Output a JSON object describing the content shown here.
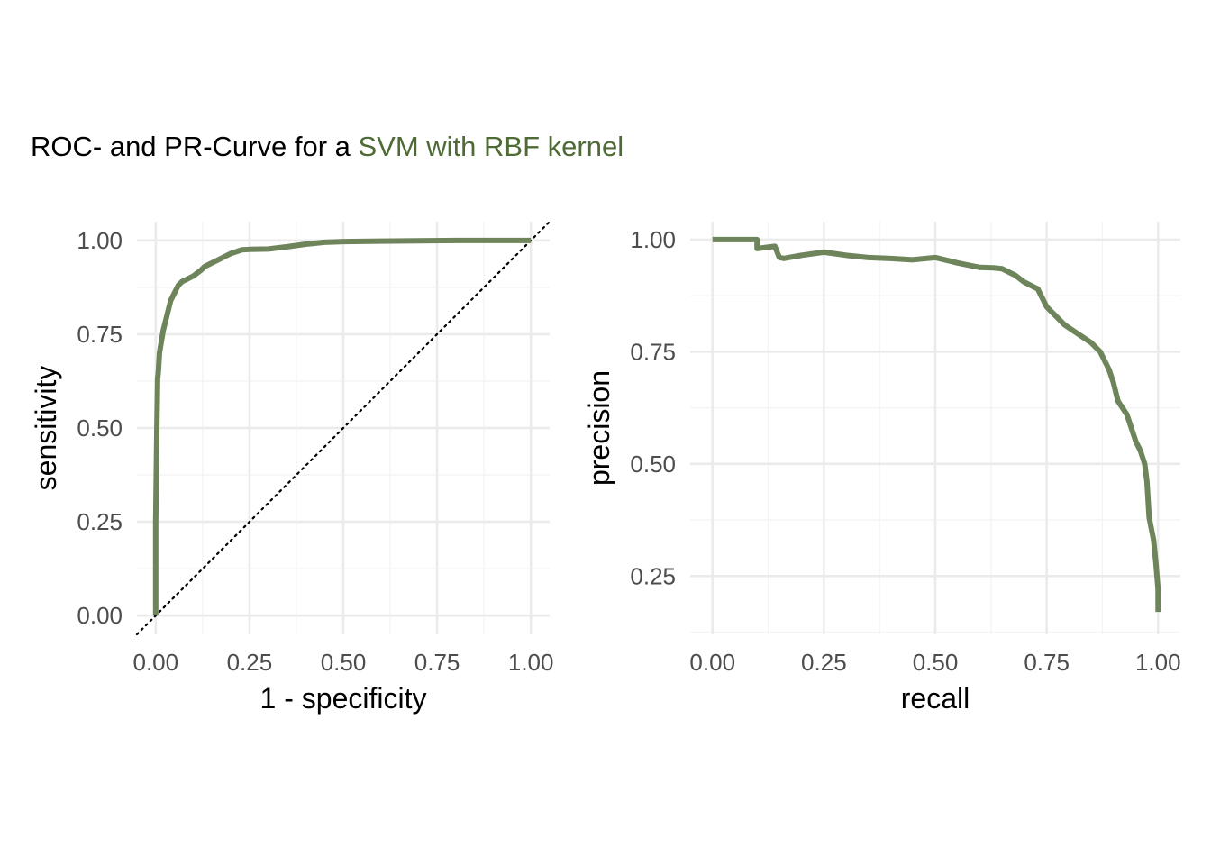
{
  "title": {
    "prefix": "ROC- and PR-Curve for a ",
    "highlight": "SVM with RBF kernel",
    "highlight_color": "#4f6b35"
  },
  "curve_color": "#6e845a",
  "chart_data": [
    {
      "type": "line",
      "xlabel": "1 - specificity",
      "ylabel": "sensitivity",
      "xlim": [
        -0.05,
        1.05
      ],
      "ylim": [
        -0.05,
        1.05
      ],
      "xticks": [
        0,
        0.25,
        0.5,
        0.75,
        1
      ],
      "yticks": [
        0,
        0.25,
        0.5,
        0.75,
        1
      ],
      "xtick_labels": [
        "0.00",
        "0.25",
        "0.50",
        "0.75",
        "1.00"
      ],
      "ytick_labels": [
        "0.00",
        "0.25",
        "0.50",
        "0.75",
        "1.00"
      ],
      "reference_line": {
        "from": [
          0,
          0
        ],
        "to": [
          1,
          1
        ],
        "style": "dotted",
        "color": "#000000"
      },
      "grid": true,
      "series": [
        {
          "x": [
            0,
            0,
            0.003,
            0.005,
            0.007,
            0.01,
            0.015,
            0.02,
            0.025,
            0.03,
            0.035,
            0.04,
            0.05,
            0.06,
            0.07,
            0.08,
            0.1,
            0.12,
            0.13,
            0.15,
            0.17,
            0.2,
            0.23,
            0.25,
            0.3,
            0.35,
            0.4,
            0.45,
            0.5,
            0.6,
            0.7,
            0.8,
            0.9,
            1.0
          ],
          "y": [
            0,
            0.25,
            0.5,
            0.63,
            0.65,
            0.7,
            0.73,
            0.76,
            0.78,
            0.8,
            0.82,
            0.84,
            0.86,
            0.88,
            0.89,
            0.895,
            0.905,
            0.92,
            0.93,
            0.94,
            0.95,
            0.965,
            0.975,
            0.976,
            0.977,
            0.983,
            0.99,
            0.995,
            0.997,
            0.998,
            0.999,
            1.0,
            1.0,
            1.0
          ]
        }
      ]
    },
    {
      "type": "line",
      "xlabel": "recall",
      "ylabel": "precision",
      "xlim": [
        -0.05,
        1.05
      ],
      "ylim": [
        0.12,
        1.04
      ],
      "xticks": [
        0,
        0.25,
        0.5,
        0.75,
        1
      ],
      "yticks": [
        0.25,
        0.5,
        0.75,
        1
      ],
      "xtick_labels": [
        "0.00",
        "0.25",
        "0.50",
        "0.75",
        "1.00"
      ],
      "ytick_labels": [
        "0.25",
        "0.50",
        "0.75",
        "1.00"
      ],
      "grid": true,
      "series": [
        {
          "x": [
            0,
            0.1,
            0.1,
            0.14,
            0.15,
            0.16,
            0.2,
            0.25,
            0.3,
            0.35,
            0.4,
            0.45,
            0.5,
            0.55,
            0.6,
            0.63,
            0.65,
            0.68,
            0.7,
            0.72,
            0.73,
            0.74,
            0.75,
            0.77,
            0.79,
            0.82,
            0.85,
            0.87,
            0.88,
            0.89,
            0.9,
            0.91,
            0.93,
            0.94,
            0.95,
            0.96,
            0.97,
            0.975,
            0.98,
            0.99,
            0.995,
            1.0,
            1.0
          ],
          "y": [
            1.0,
            1.0,
            0.98,
            0.985,
            0.96,
            0.958,
            0.965,
            0.972,
            0.965,
            0.96,
            0.958,
            0.955,
            0.96,
            0.948,
            0.938,
            0.937,
            0.935,
            0.92,
            0.905,
            0.895,
            0.89,
            0.87,
            0.85,
            0.83,
            0.81,
            0.79,
            0.77,
            0.75,
            0.73,
            0.71,
            0.68,
            0.64,
            0.61,
            0.58,
            0.55,
            0.53,
            0.5,
            0.46,
            0.38,
            0.33,
            0.28,
            0.22,
            0.17
          ]
        }
      ]
    }
  ]
}
